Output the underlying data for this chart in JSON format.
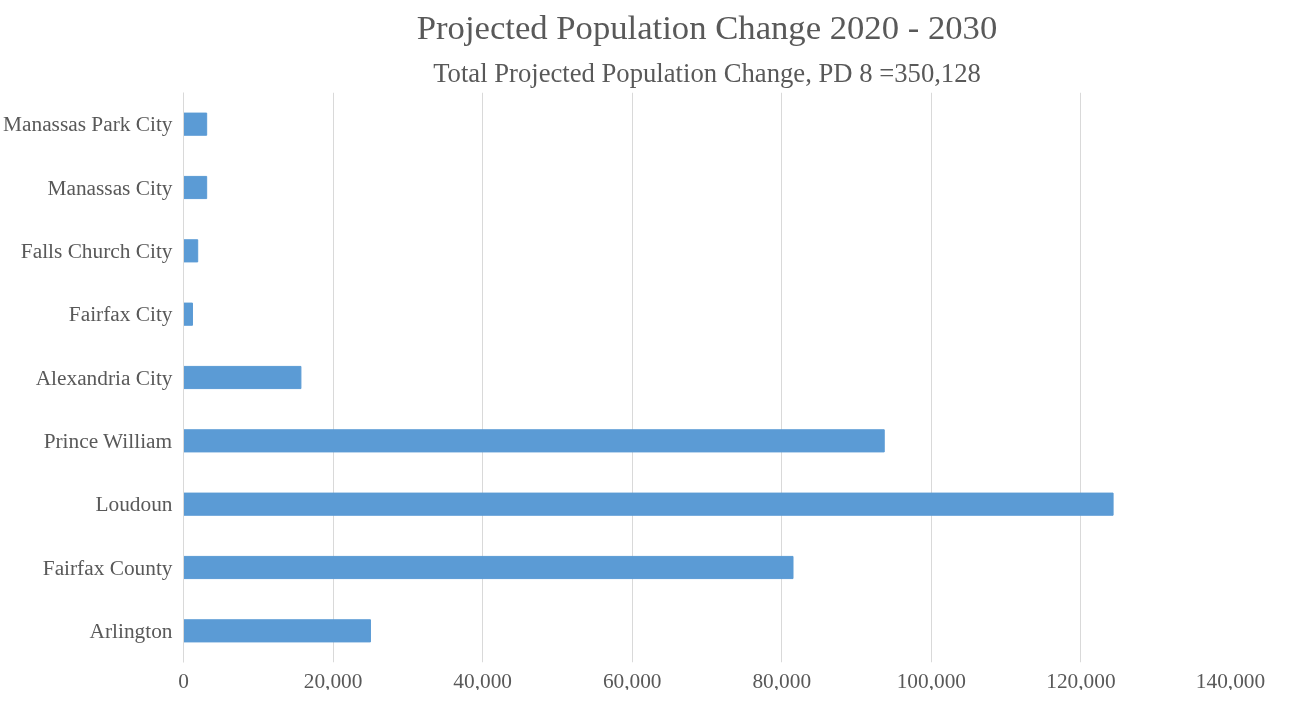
{
  "chart_data": {
    "type": "bar",
    "orientation": "horizontal",
    "title": "Projected Population Change 2020 - 2030",
    "subtitle": "Total Projected Population Change, PD 8 =350,128",
    "categories": [
      "Manassas Park City",
      "Manassas City",
      "Falls Church City",
      "Fairfax City",
      "Alexandria City",
      "Prince William",
      "Loudoun",
      "Fairfax County",
      "Arlington"
    ],
    "values": [
      3100,
      3100,
      1900,
      1200,
      15700,
      93700,
      124300,
      81500,
      25000
    ],
    "color": "#5b9bd5",
    "xlim": [
      0,
      140000
    ],
    "xticks": [
      0,
      {
        "value": 20000,
        "label": "20,000"
      },
      {
        "value": 40000,
        "label": "40,000"
      },
      {
        "value": 60000,
        "label": "60,000"
      },
      {
        "value": 80000,
        "label": "80,000"
      },
      {
        "value": 100000,
        "label": "100,000"
      },
      {
        "value": 120000,
        "label": "120,000"
      },
      {
        "value": 140000,
        "label": "140,000"
      }
    ],
    "grid": "x"
  }
}
